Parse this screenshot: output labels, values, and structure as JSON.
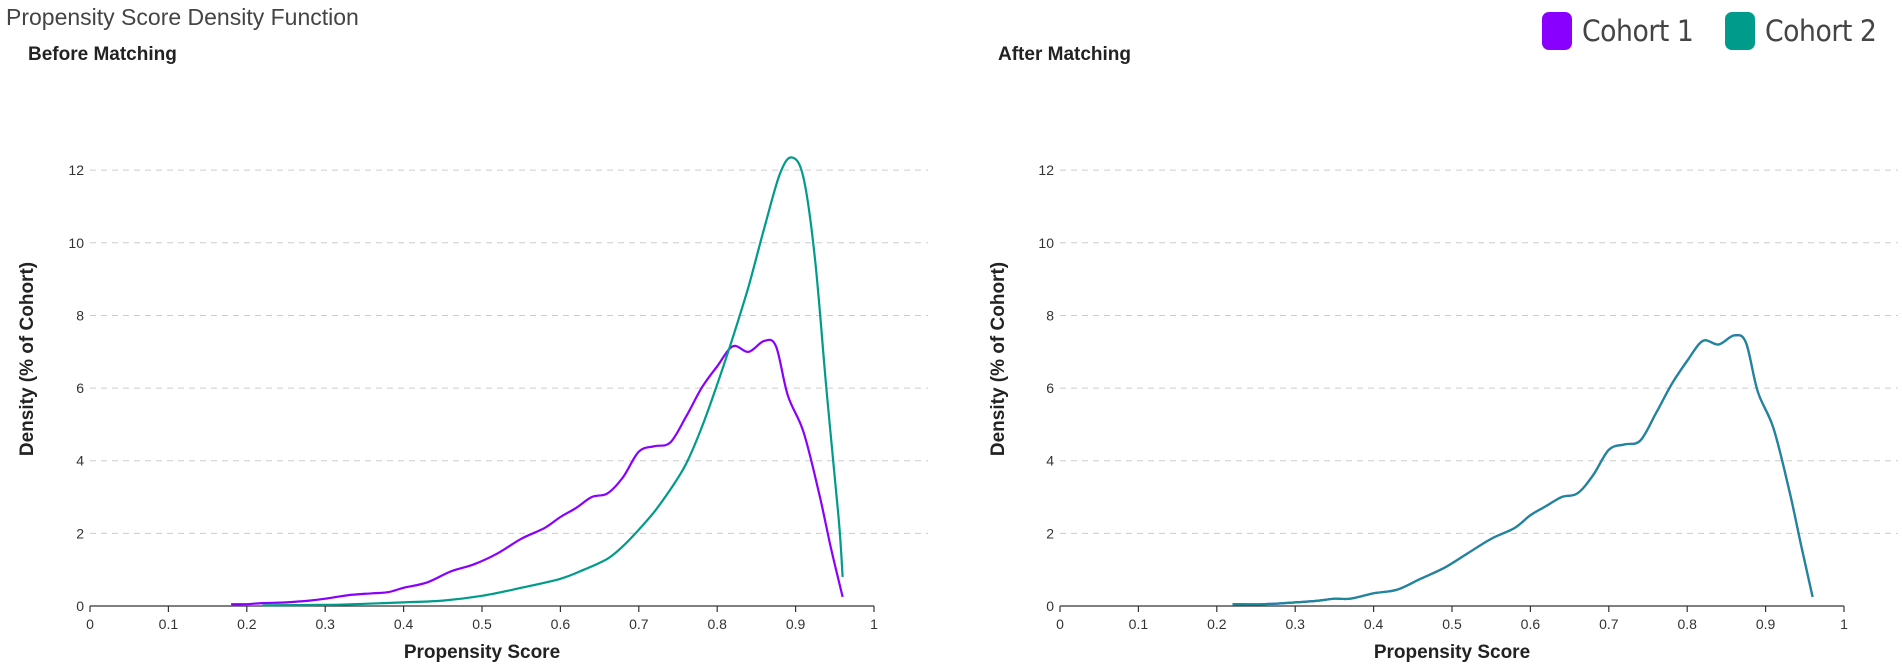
{
  "page_title": "Propensity Score Density Function",
  "legend": [
    {
      "label": "Cohort 1",
      "color": "#8a00ff"
    },
    {
      "label": "Cohort 2",
      "color": "#009b8a"
    }
  ],
  "chart_data": [
    {
      "type": "line",
      "title": "Before Matching",
      "xlabel": "Propensity Score",
      "ylabel": "Density (% of Cohort)",
      "xlim": [
        0,
        1
      ],
      "ylim": [
        0,
        12.5
      ],
      "xticks": [
        "0",
        "0.1",
        "0.2",
        "0.3",
        "0.4",
        "0.5",
        "0.6",
        "0.7",
        "0.8",
        "0.9",
        "1"
      ],
      "yticks": [
        "0",
        "2",
        "4",
        "6",
        "8",
        "10",
        "12"
      ],
      "grid": true,
      "series": [
        {
          "name": "Cohort 1",
          "color": "#8a00ff",
          "points": [
            [
              0.18,
              0.05
            ],
            [
              0.2,
              0.05
            ],
            [
              0.22,
              0.08
            ],
            [
              0.25,
              0.1
            ],
            [
              0.28,
              0.15
            ],
            [
              0.3,
              0.2
            ],
            [
              0.33,
              0.3
            ],
            [
              0.36,
              0.35
            ],
            [
              0.38,
              0.38
            ],
            [
              0.4,
              0.5
            ],
            [
              0.43,
              0.65
            ],
            [
              0.46,
              0.95
            ],
            [
              0.49,
              1.15
            ],
            [
              0.52,
              1.45
            ],
            [
              0.55,
              1.85
            ],
            [
              0.58,
              2.15
            ],
            [
              0.6,
              2.45
            ],
            [
              0.62,
              2.7
            ],
            [
              0.64,
              3.0
            ],
            [
              0.66,
              3.1
            ],
            [
              0.68,
              3.55
            ],
            [
              0.7,
              4.25
            ],
            [
              0.72,
              4.4
            ],
            [
              0.74,
              4.5
            ],
            [
              0.76,
              5.2
            ],
            [
              0.78,
              6.0
            ],
            [
              0.8,
              6.6
            ],
            [
              0.82,
              7.15
            ],
            [
              0.84,
              7.0
            ],
            [
              0.86,
              7.3
            ],
            [
              0.875,
              7.15
            ],
            [
              0.89,
              5.8
            ],
            [
              0.91,
              4.8
            ],
            [
              0.93,
              3.1
            ],
            [
              0.945,
              1.6
            ],
            [
              0.96,
              0.25
            ]
          ]
        },
        {
          "name": "Cohort 2",
          "color": "#009b8a",
          "points": [
            [
              0.22,
              0.02
            ],
            [
              0.3,
              0.03
            ],
            [
              0.35,
              0.06
            ],
            [
              0.4,
              0.1
            ],
            [
              0.45,
              0.15
            ],
            [
              0.5,
              0.28
            ],
            [
              0.55,
              0.5
            ],
            [
              0.6,
              0.75
            ],
            [
              0.63,
              1.0
            ],
            [
              0.66,
              1.3
            ],
            [
              0.68,
              1.65
            ],
            [
              0.7,
              2.1
            ],
            [
              0.72,
              2.6
            ],
            [
              0.74,
              3.2
            ],
            [
              0.76,
              3.9
            ],
            [
              0.78,
              4.9
            ],
            [
              0.8,
              6.1
            ],
            [
              0.82,
              7.4
            ],
            [
              0.84,
              8.8
            ],
            [
              0.86,
              10.4
            ],
            [
              0.88,
              11.9
            ],
            [
              0.895,
              12.35
            ],
            [
              0.91,
              11.8
            ],
            [
              0.925,
              9.5
            ],
            [
              0.94,
              5.8
            ],
            [
              0.955,
              2.4
            ],
            [
              0.96,
              0.8
            ]
          ]
        }
      ]
    },
    {
      "type": "line",
      "title": "After Matching",
      "xlabel": "Propensity Score",
      "ylabel": "Density (% of Cohort)",
      "xlim": [
        0,
        1
      ],
      "ylim": [
        0,
        12.5
      ],
      "xticks": [
        "0",
        "0.1",
        "0.2",
        "0.3",
        "0.4",
        "0.5",
        "0.6",
        "0.7",
        "0.8",
        "0.9",
        "1"
      ],
      "yticks": [
        "0",
        "2",
        "4",
        "6",
        "8",
        "10",
        "12"
      ],
      "grid": true,
      "series": [
        {
          "name": "Cohort 1",
          "color": "#8a00ff",
          "points": [
            [
              0.22,
              0.05
            ],
            [
              0.26,
              0.05
            ],
            [
              0.3,
              0.1
            ],
            [
              0.33,
              0.15
            ],
            [
              0.35,
              0.2
            ],
            [
              0.37,
              0.2
            ],
            [
              0.4,
              0.35
            ],
            [
              0.43,
              0.45
            ],
            [
              0.46,
              0.75
            ],
            [
              0.49,
              1.05
            ],
            [
              0.52,
              1.45
            ],
            [
              0.55,
              1.85
            ],
            [
              0.58,
              2.15
            ],
            [
              0.6,
              2.5
            ],
            [
              0.62,
              2.75
            ],
            [
              0.64,
              3.0
            ],
            [
              0.66,
              3.1
            ],
            [
              0.68,
              3.6
            ],
            [
              0.7,
              4.3
            ],
            [
              0.72,
              4.45
            ],
            [
              0.74,
              4.55
            ],
            [
              0.76,
              5.3
            ],
            [
              0.78,
              6.1
            ],
            [
              0.8,
              6.75
            ],
            [
              0.82,
              7.3
            ],
            [
              0.84,
              7.2
            ],
            [
              0.86,
              7.45
            ],
            [
              0.875,
              7.25
            ],
            [
              0.89,
              5.9
            ],
            [
              0.91,
              4.9
            ],
            [
              0.93,
              3.2
            ],
            [
              0.945,
              1.7
            ],
            [
              0.96,
              0.25
            ]
          ]
        },
        {
          "name": "Cohort 2",
          "color": "#1a8a9a",
          "points": [
            [
              0.22,
              0.05
            ],
            [
              0.26,
              0.05
            ],
            [
              0.3,
              0.1
            ],
            [
              0.33,
              0.15
            ],
            [
              0.35,
              0.2
            ],
            [
              0.37,
              0.2
            ],
            [
              0.4,
              0.35
            ],
            [
              0.43,
              0.45
            ],
            [
              0.46,
              0.75
            ],
            [
              0.49,
              1.05
            ],
            [
              0.52,
              1.45
            ],
            [
              0.55,
              1.85
            ],
            [
              0.58,
              2.15
            ],
            [
              0.6,
              2.5
            ],
            [
              0.62,
              2.75
            ],
            [
              0.64,
              3.0
            ],
            [
              0.66,
              3.1
            ],
            [
              0.68,
              3.6
            ],
            [
              0.7,
              4.3
            ],
            [
              0.72,
              4.45
            ],
            [
              0.74,
              4.55
            ],
            [
              0.76,
              5.3
            ],
            [
              0.78,
              6.1
            ],
            [
              0.8,
              6.75
            ],
            [
              0.82,
              7.3
            ],
            [
              0.84,
              7.2
            ],
            [
              0.86,
              7.45
            ],
            [
              0.875,
              7.25
            ],
            [
              0.89,
              5.9
            ],
            [
              0.91,
              4.9
            ],
            [
              0.93,
              3.2
            ],
            [
              0.945,
              1.7
            ],
            [
              0.96,
              0.25
            ]
          ]
        }
      ]
    }
  ]
}
